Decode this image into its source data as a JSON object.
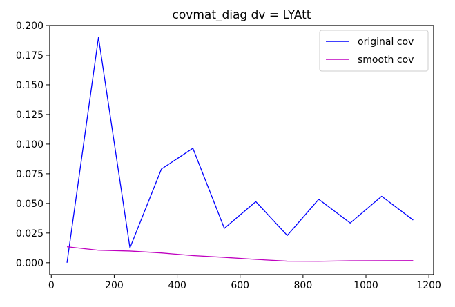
{
  "chart_data": {
    "type": "line",
    "title": "covmat_diag dv = LYAtt",
    "xlabel": "",
    "ylabel": "",
    "xlim": [
      0,
      1200
    ],
    "ylim": [
      -0.01,
      0.2
    ],
    "x_ticks": [
      0,
      200,
      400,
      600,
      800,
      1000,
      1200
    ],
    "x_tick_labels": [
      "0",
      "200",
      "400",
      "600",
      "800",
      "1000",
      "1200"
    ],
    "y_ticks": [
      0.0,
      0.025,
      0.05,
      0.075,
      0.1,
      0.125,
      0.15,
      0.175,
      0.2
    ],
    "y_tick_labels": [
      "0.000",
      "0.025",
      "0.050",
      "0.075",
      "0.100",
      "0.125",
      "0.150",
      "0.175",
      "0.200"
    ],
    "grid": false,
    "legend_position": "top-right",
    "x": [
      50,
      150,
      250,
      350,
      450,
      550,
      650,
      750,
      850,
      950,
      1050,
      1150
    ],
    "series": [
      {
        "name": "original cov",
        "color": "#0000ff",
        "values": [
          0.0,
          0.19,
          0.0125,
          0.079,
          0.0965,
          0.029,
          0.0515,
          0.023,
          0.0535,
          0.0335,
          0.056,
          0.036
        ]
      },
      {
        "name": "smooth cov",
        "color": "#bf00bf",
        "values": [
          0.0135,
          0.0105,
          0.0098,
          0.0082,
          0.006,
          0.0045,
          0.0028,
          0.0013,
          0.0012,
          0.0016,
          0.0017,
          0.0018
        ]
      }
    ]
  }
}
